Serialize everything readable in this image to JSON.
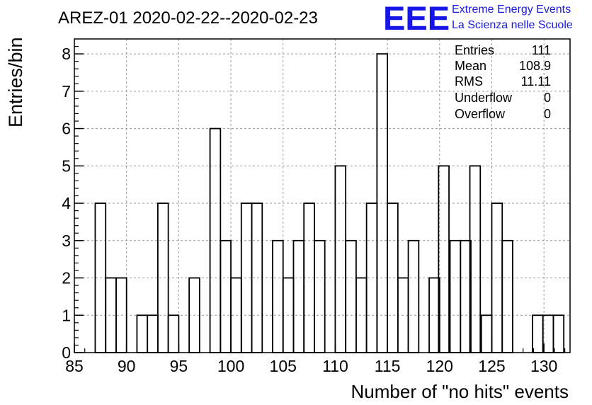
{
  "chart_data": {
    "type": "bar",
    "title": "AREZ-01 2020-02-22--2020-02-23",
    "xlabel": "Number of \"no hits\" events",
    "ylabel": "Entries/bin",
    "xlim": [
      85,
      132.5
    ],
    "ylim": [
      0,
      8.4
    ],
    "x_ticks": [
      85,
      90,
      95,
      100,
      105,
      110,
      115,
      120,
      125,
      130
    ],
    "y_ticks": [
      0,
      1,
      2,
      3,
      4,
      5,
      6,
      7,
      8
    ],
    "grid": true,
    "bin_width": 1,
    "bins": [
      {
        "x": 87,
        "count": 4
      },
      {
        "x": 88,
        "count": 2
      },
      {
        "x": 89,
        "count": 2
      },
      {
        "x": 91,
        "count": 1
      },
      {
        "x": 92,
        "count": 1
      },
      {
        "x": 93,
        "count": 4
      },
      {
        "x": 94,
        "count": 1
      },
      {
        "x": 96,
        "count": 2
      },
      {
        "x": 98,
        "count": 6
      },
      {
        "x": 99,
        "count": 3
      },
      {
        "x": 100,
        "count": 2
      },
      {
        "x": 101,
        "count": 4
      },
      {
        "x": 102,
        "count": 4
      },
      {
        "x": 104,
        "count": 3
      },
      {
        "x": 105,
        "count": 2
      },
      {
        "x": 106,
        "count": 3
      },
      {
        "x": 107,
        "count": 4
      },
      {
        "x": 108,
        "count": 3
      },
      {
        "x": 110,
        "count": 5
      },
      {
        "x": 111,
        "count": 3
      },
      {
        "x": 112,
        "count": 2
      },
      {
        "x": 113,
        "count": 4
      },
      {
        "x": 114,
        "count": 8
      },
      {
        "x": 115,
        "count": 4
      },
      {
        "x": 116,
        "count": 2
      },
      {
        "x": 117,
        "count": 3
      },
      {
        "x": 119,
        "count": 2
      },
      {
        "x": 119.9,
        "count": 5
      },
      {
        "x": 121,
        "count": 3
      },
      {
        "x": 122,
        "count": 3
      },
      {
        "x": 122.9,
        "count": 5
      },
      {
        "x": 124,
        "count": 1
      },
      {
        "x": 125,
        "count": 4
      },
      {
        "x": 126,
        "count": 3
      },
      {
        "x": 128.9,
        "count": 1
      },
      {
        "x": 129.9,
        "count": 1
      },
      {
        "x": 130.9,
        "count": 1
      }
    ],
    "stats": [
      {
        "label": "Entries",
        "value": "111"
      },
      {
        "label": "Mean",
        "value": "108.9"
      },
      {
        "label": "RMS",
        "value": "11.11"
      },
      {
        "label": "Underflow",
        "value": "0"
      },
      {
        "label": "Overflow",
        "value": "0"
      }
    ]
  },
  "logo": {
    "text": "EEE",
    "line1": "Extreme Energy Events",
    "line2": "La Scienza nelle Scuole",
    "color": "#1616e8"
  }
}
